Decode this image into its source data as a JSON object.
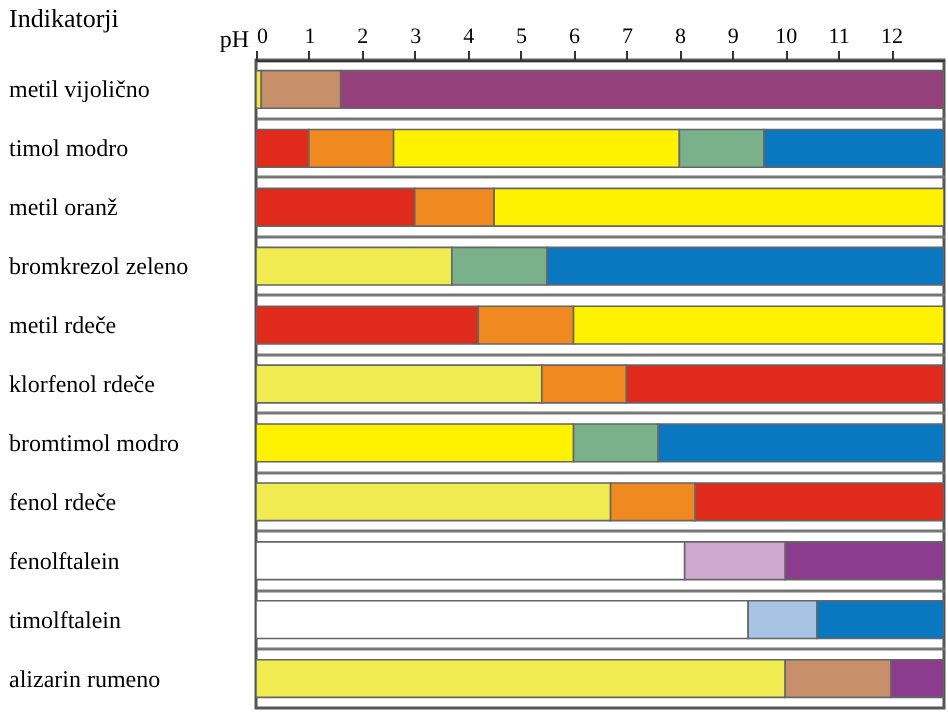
{
  "chart_data": {
    "type": "bar",
    "orientation": "horizontal",
    "stacked": true,
    "xlabel": "pH",
    "ylabel": "Indikatorji",
    "categories": [
      "metil vijolično",
      "timol modro",
      "metil oranž",
      "bromkrezol zeleno",
      "metil rdeče",
      "klorfenol rdeče",
      "bromtimol modro",
      "fenol rdeče",
      "fenolftalein",
      "timolftalein",
      "alizarin rumeno"
    ],
    "series": [
      {
        "values": [
          0.1,
          1.0,
          3.0,
          3.7,
          4.2,
          5.4,
          6.0,
          6.7,
          8.1,
          9.3,
          10.0
        ],
        "colors": [
          "#f2e640",
          "#e02a1c",
          "#e02a1c",
          "#f0eb50",
          "#e02a1c",
          "#f0eb50",
          "#fff200",
          "#f0eb50",
          "#ffffff",
          "#ffffff",
          "#f0eb50"
        ]
      },
      {
        "values": [
          1.5,
          1.6,
          1.5,
          1.8,
          1.8,
          1.6,
          1.6,
          1.6,
          1.9,
          1.3,
          2.0
        ],
        "colors": [
          "#c8906a",
          "#f08a20",
          "#f08a20",
          "#7ab08a",
          "#f08a20",
          "#f08a20",
          "#7ab08a",
          "#f08a20",
          "#d0a8d0",
          "#a8c4e4",
          "#c8906a"
        ]
      },
      {
        "values": [
          11.4,
          5.4,
          8.5,
          7.5,
          7.0,
          6.0,
          5.4,
          4.7,
          3.0,
          2.4,
          1.0
        ],
        "colors": [
          "#94407a",
          "#fff200",
          "#fff200",
          "#0a78c0",
          "#fff200",
          "#e02a1c",
          "#0a78c0",
          "#e02a1c",
          "#8c3c8c",
          "#0a78c0",
          "#8c3c8c"
        ]
      },
      {
        "values": [
          null,
          1.6,
          null,
          null,
          null,
          null,
          null,
          null,
          null,
          null,
          null
        ],
        "colors": [
          null,
          "#7ab08a",
          null,
          null,
          null,
          null,
          null,
          null,
          null,
          null,
          null
        ]
      },
      {
        "values": [
          null,
          3.4,
          null,
          null,
          null,
          null,
          null,
          null,
          null,
          null,
          null
        ],
        "colors": [
          null,
          "#0a78c0",
          null,
          null,
          null,
          null,
          null,
          null,
          null,
          null,
          null
        ]
      }
    ],
    "xlim": [
      0,
      13
    ],
    "xticks": [
      0,
      1,
      2,
      3,
      4,
      5,
      6,
      7,
      8,
      9,
      10,
      11,
      12
    ],
    "grid": "y"
  }
}
